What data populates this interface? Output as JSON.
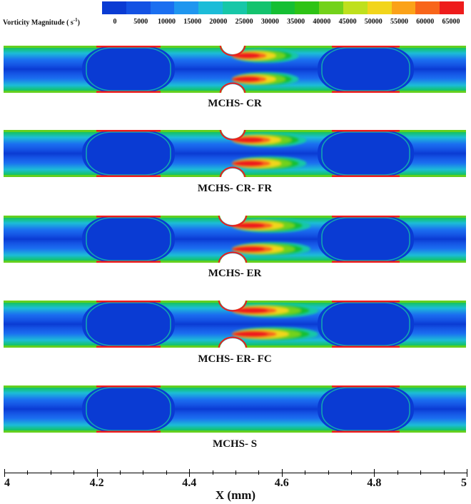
{
  "legend": {
    "title": "Vorticity Magnitude ( s",
    "unit_exp": "-1",
    "title_close": ")",
    "ticks": [
      "0",
      "5000",
      "10000",
      "15000",
      "20000",
      "25000",
      "30000",
      "35000",
      "40000",
      "45000",
      "50000",
      "55000",
      "60000",
      "65000"
    ],
    "colors": [
      "#0a3bd3",
      "#1452e3",
      "#1b6ff0",
      "#1f96ef",
      "#1cbcd8",
      "#17c7a8",
      "#14c36e",
      "#15bf33",
      "#2ec315",
      "#73d21a",
      "#bfe01d",
      "#f2d51b",
      "#fba218",
      "#f8651a",
      "#ee1c1c"
    ]
  },
  "panels": [
    {
      "label": "MCHS- CR",
      "notch": "circle",
      "jet": 0.85
    },
    {
      "label": "MCHS- CR- FR",
      "notch": "circle",
      "jet": 0.95
    },
    {
      "label": "MCHS- ER",
      "notch": "ellipse",
      "jet": 1.0
    },
    {
      "label": "MCHS- ER- FC",
      "notch": "ellipse",
      "jet": 1.1
    },
    {
      "label": "MCHS- S",
      "notch": "none",
      "jet": 0
    }
  ],
  "x_axis": {
    "title": "X (mm)",
    "ticks": [
      "4",
      "4.2",
      "4.4",
      "4.6",
      "4.8",
      "5"
    ]
  }
}
